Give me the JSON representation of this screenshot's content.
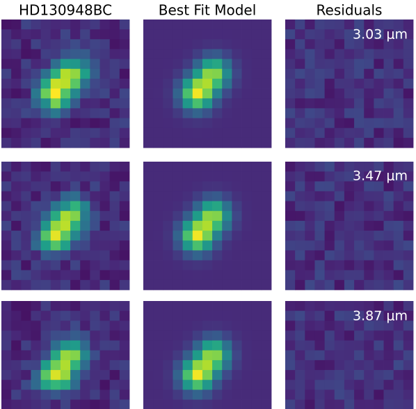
{
  "columns": [
    "HD130948BC",
    "Best Fit Model",
    "Residuals"
  ],
  "rows": [
    {
      "label": "3.03 μm"
    },
    {
      "label": "3.47 μm"
    },
    {
      "label": "3.87 μm"
    }
  ]
}
